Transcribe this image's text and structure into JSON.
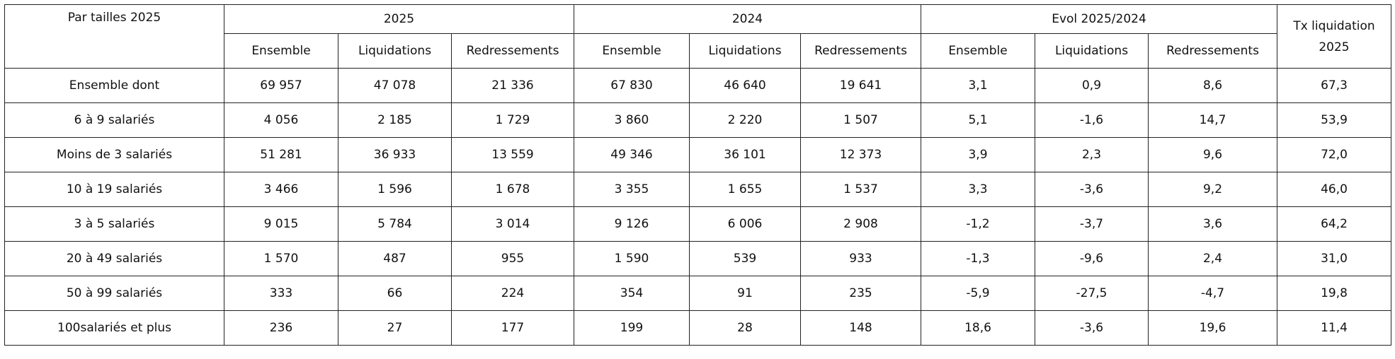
{
  "table": {
    "corner": "Par tailles 2025",
    "groups": [
      {
        "label": "2025",
        "columns": [
          "Ensemble",
          "Liquidations",
          "Redressements"
        ]
      },
      {
        "label": "2024",
        "columns": [
          "Ensemble",
          "Liquidations",
          "Redressements"
        ]
      },
      {
        "label": "Evol 2025/2024",
        "columns": [
          "Ensemble",
          "Liquidations",
          "Redressements"
        ]
      }
    ],
    "last_header": "Tx liquidation 2025",
    "rows": [
      [
        "Ensemble dont",
        "69 957",
        "47 078",
        "21 336",
        "67 830",
        "46 640",
        "19 641",
        "3,1",
        "0,9",
        "8,6",
        "67,3"
      ],
      [
        "6 à 9 salariés",
        "4 056",
        "2 185",
        "1 729",
        "3 860",
        "2 220",
        "1 507",
        "5,1",
        "-1,6",
        "14,7",
        "53,9"
      ],
      [
        "Moins de 3 salariés",
        "51 281",
        "36 933",
        "13 559",
        "49 346",
        "36 101",
        "12 373",
        "3,9",
        "2,3",
        "9,6",
        "72,0"
      ],
      [
        "10 à 19 salariés",
        "3 466",
        "1 596",
        "1 678",
        "3 355",
        "1 655",
        "1 537",
        "3,3",
        "-3,6",
        "9,2",
        "46,0"
      ],
      [
        "3 à 5 salariés",
        "9 015",
        "5 784",
        "3 014",
        "9 126",
        "6 006",
        "2 908",
        "-1,2",
        "-3,7",
        "3,6",
        "64,2"
      ],
      [
        "20 à 49 salariés",
        "1 570",
        "487",
        "955",
        "1 590",
        "539",
        "933",
        "-1,3",
        "-9,6",
        "2,4",
        "31,0"
      ],
      [
        "50 à 99 salariés",
        "333",
        "66",
        "224",
        "354",
        "91",
        "235",
        "-5,9",
        "-27,5",
        "-4,7",
        "19,8"
      ],
      [
        "100salariés et plus",
        "236",
        "27",
        "177",
        "199",
        "28",
        "148",
        "18,6",
        "-3,6",
        "19,6",
        "11,4"
      ]
    ]
  }
}
